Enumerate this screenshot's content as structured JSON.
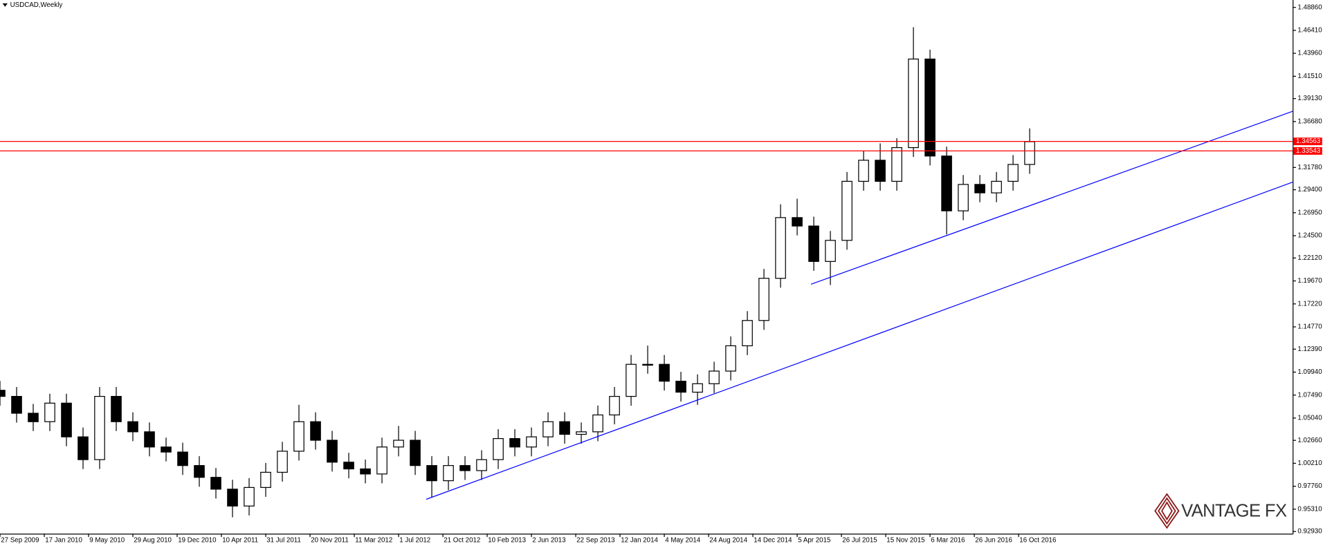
{
  "chart_data": {
    "type": "candlestick",
    "title": "USDCAD,Weekly",
    "watermark": "VANTAGE FX",
    "x": [
      0,
      6,
      12,
      18,
      24,
      30,
      36,
      42,
      48,
      54,
      60,
      66,
      72,
      78,
      84,
      90,
      96,
      102,
      108,
      114,
      120,
      126,
      132,
      138,
      144,
      150,
      156,
      162,
      168,
      174,
      180,
      186,
      192,
      198,
      204,
      210,
      216,
      222,
      228,
      234,
      240,
      246,
      252,
      258,
      264,
      270,
      276,
      282,
      288,
      294,
      300,
      306,
      312,
      318,
      324,
      330,
      336,
      342,
      348,
      354,
      360,
      366,
      372
    ],
    "open": [
      1.08,
      1.0735,
      1.0555,
      1.0465,
      1.0663,
      1.0303,
      1.006,
      1.0735,
      1.0465,
      1.0357,
      1.0195,
      1.0141,
      0.9997,
      0.9871,
      0.9745,
      0.9565,
      0.9763,
      0.9925,
      1.015,
      1.0465,
      1.0267,
      1.0033,
      0.9961,
      0.9907,
      1.0195,
      1.0267,
      0.9997,
      0.9835,
      0.9997,
      0.9943,
      1.006,
      1.0285,
      1.0195,
      1.0303,
      1.0465,
      1.033,
      1.0357,
      1.0537,
      1.0735,
      1.1077,
      1.1077,
      1.0897,
      1.078,
      1.087,
      1.1005,
      1.1275,
      1.1545,
      1.1995,
      1.2643,
      1.2553,
      1.2175,
      1.24,
      1.303,
      1.3255,
      1.303,
      1.339,
      1.4335,
      1.33,
      1.2715,
      1.2997,
      1.2907,
      1.303,
      1.321
    ],
    "high": [
      1.09,
      1.0835,
      1.0655,
      1.0763,
      1.0763,
      1.0403,
      1.0835,
      1.0835,
      1.0565,
      1.0457,
      1.0295,
      1.0241,
      1.0097,
      0.9971,
      0.9845,
      0.9863,
      1.0025,
      1.025,
      1.0645,
      1.0565,
      1.0367,
      1.0133,
      1.0061,
      1.0295,
      1.042,
      1.0367,
      1.0097,
      1.0097,
      1.0097,
      1.016,
      1.0385,
      1.0385,
      1.0403,
      1.0565,
      1.0565,
      1.0457,
      1.0637,
      1.0835,
      1.1177,
      1.1277,
      1.1177,
      1.0997,
      1.097,
      1.1105,
      1.1375,
      1.1645,
      1.2095,
      1.2785,
      1.2845,
      1.2653,
      1.25,
      1.313,
      1.3355,
      1.3435,
      1.349,
      1.4675,
      1.4435,
      1.34,
      1.3097,
      1.3097,
      1.313,
      1.331,
      1.3595
    ],
    "low": [
      1.0635,
      1.0455,
      1.0365,
      1.0365,
      1.0203,
      0.996,
      0.996,
      1.0365,
      1.0257,
      1.0095,
      1.0041,
      0.9897,
      0.9771,
      0.9645,
      0.9445,
      0.9465,
      0.9663,
      0.9825,
      1.005,
      1.0167,
      0.9933,
      0.9861,
      0.9807,
      0.9807,
      1.0095,
      0.9897,
      0.9655,
      0.9735,
      0.9843,
      0.9843,
      0.996,
      1.0095,
      1.0095,
      1.0203,
      1.023,
      1.023,
      1.0257,
      1.0437,
      1.0635,
      1.0977,
      1.0797,
      1.068,
      1.0645,
      1.077,
      1.0905,
      1.1175,
      1.1445,
      1.1895,
      1.2453,
      1.2075,
      1.1923,
      1.23,
      1.293,
      1.293,
      1.293,
      1.329,
      1.32,
      1.2463,
      1.2615,
      1.2807,
      1.2807,
      1.293,
      1.311
    ],
    "close": [
      1.0735,
      1.0555,
      1.0465,
      1.0663,
      1.0303,
      1.006,
      1.0735,
      1.0465,
      1.0357,
      1.0195,
      1.0141,
      0.9997,
      0.9871,
      0.9745,
      0.9565,
      0.9763,
      0.9925,
      1.015,
      1.0465,
      1.0267,
      1.0033,
      0.9961,
      0.9907,
      1.0195,
      1.0267,
      0.9997,
      0.9835,
      0.9997,
      0.9943,
      1.006,
      1.0285,
      1.0195,
      1.0303,
      1.0465,
      1.033,
      1.0357,
      1.0537,
      1.0735,
      1.1077,
      1.1077,
      1.0897,
      1.078,
      1.087,
      1.1005,
      1.1275,
      1.1545,
      1.1995,
      1.2643,
      1.2553,
      1.2175,
      1.24,
      1.303,
      1.3255,
      1.303,
      1.339,
      1.4335,
      1.33,
      1.2715,
      1.2997,
      1.2907,
      1.303,
      1.321,
      1.3453
    ],
    "up_color": "#ffffff",
    "down_color": "#000000",
    "xlim": [
      0,
      467
    ],
    "ylim": [
      0.927,
      1.4965
    ],
    "xticks": [
      {
        "value": 0,
        "label": "27 Sep 2009"
      },
      {
        "value": 16,
        "label": "17 Jan 2010"
      },
      {
        "value": 32,
        "label": "9 May 2010"
      },
      {
        "value": 48,
        "label": "29 Aug 2010"
      },
      {
        "value": 64,
        "label": "19 Dec 2010"
      },
      {
        "value": 80,
        "label": "10 Apr 2011"
      },
      {
        "value": 96,
        "label": "31 Jul 2011"
      },
      {
        "value": 112,
        "label": "20 Nov 2011"
      },
      {
        "value": 128,
        "label": "11 Mar 2012"
      },
      {
        "value": 144,
        "label": "1 Jul 2012"
      },
      {
        "value": 160,
        "label": "21 Oct 2012"
      },
      {
        "value": 176,
        "label": "10 Feb 2013"
      },
      {
        "value": 192,
        "label": "2 Jun 2013"
      },
      {
        "value": 208,
        "label": "22 Sep 2013"
      },
      {
        "value": 224,
        "label": "12 Jan 2014"
      },
      {
        "value": 240,
        "label": "4 May 2014"
      },
      {
        "value": 256,
        "label": "24 Aug 2014"
      },
      {
        "value": 272,
        "label": "14 Dec 2014"
      },
      {
        "value": 288,
        "label": "5 Apr 2015"
      },
      {
        "value": 304,
        "label": "26 Jul 2015"
      },
      {
        "value": 320,
        "label": "15 Nov 2015"
      },
      {
        "value": 336,
        "label": "6 Mar 2016"
      },
      {
        "value": 352,
        "label": "26 Jun 2016"
      },
      {
        "value": 368,
        "label": "16 Oct 2016"
      }
    ],
    "yticks": [
      {
        "value": 1.4886,
        "label": "1.48860"
      },
      {
        "value": 1.4641,
        "label": "1.46410"
      },
      {
        "value": 1.4396,
        "label": "1.43960"
      },
      {
        "value": 1.4151,
        "label": "1.41510"
      },
      {
        "value": 1.3913,
        "label": "1.39130"
      },
      {
        "value": 1.3668,
        "label": "1.36680"
      },
      {
        "value": 1.3178,
        "label": "1.31780"
      },
      {
        "value": 1.294,
        "label": "1.29400"
      },
      {
        "value": 1.2695,
        "label": "1.26950"
      },
      {
        "value": 1.245,
        "label": "1.24500"
      },
      {
        "value": 1.2212,
        "label": "1.22120"
      },
      {
        "value": 1.1967,
        "label": "1.19670"
      },
      {
        "value": 1.1722,
        "label": "1.17220"
      },
      {
        "value": 1.1477,
        "label": "1.14770"
      },
      {
        "value": 1.1239,
        "label": "1.12390"
      },
      {
        "value": 1.0994,
        "label": "1.09940"
      },
      {
        "value": 1.0749,
        "label": "1.07490"
      },
      {
        "value": 1.0504,
        "label": "1.05040"
      },
      {
        "value": 1.0266,
        "label": "1.02660"
      },
      {
        "value": 1.0021,
        "label": "1.00210"
      },
      {
        "value": 0.9776,
        "label": "0.97760"
      },
      {
        "value": 0.9531,
        "label": "0.95310"
      },
      {
        "value": 0.9293,
        "label": "0.92930"
      }
    ],
    "hlines": [
      1.34563,
      1.33543
    ],
    "hline_color": "#ff0000",
    "trendlines": [
      {
        "x": [
          154,
          467
        ],
        "y": [
          0.9637,
          1.3021
        ],
        "color": "#0000ff"
      },
      {
        "x": [
          293,
          467
        ],
        "y": [
          1.1932,
          1.3777
        ],
        "color": "#0000ff"
      }
    ]
  }
}
